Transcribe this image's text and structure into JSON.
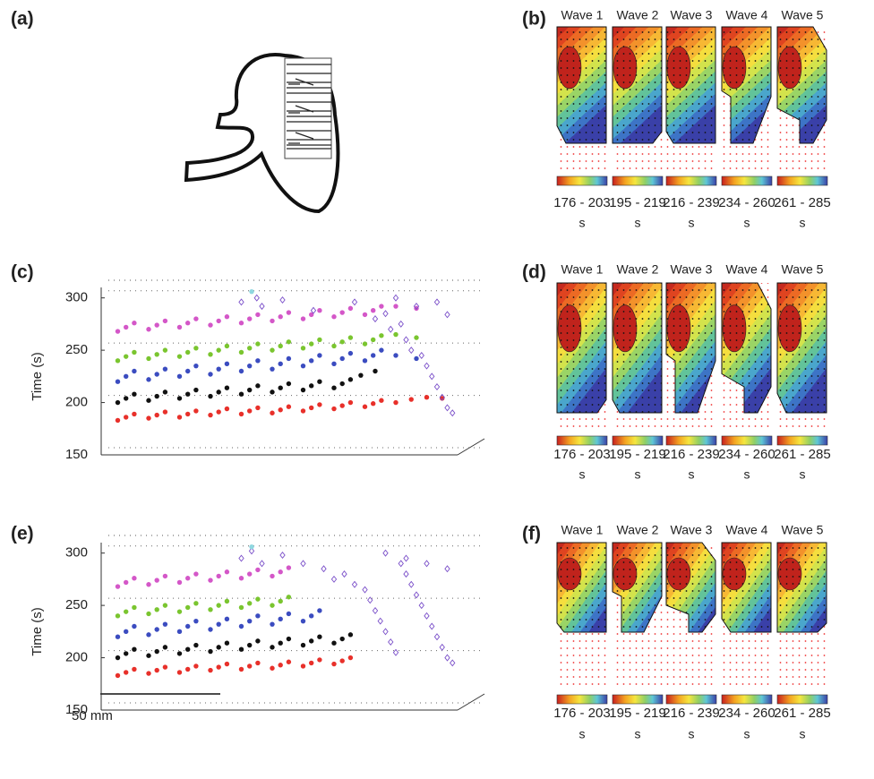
{
  "panel_labels": [
    "(a)",
    "(b)",
    "(c)",
    "(d)",
    "(e)",
    "(f)"
  ],
  "wave_maps": [
    {
      "waves": [
        {
          "title": "Wave 1",
          "range": "176 - 203",
          "unit": "s"
        },
        {
          "title": "Wave 2",
          "range": "195 - 219",
          "unit": "s"
        },
        {
          "title": "Wave 3",
          "range": "216 - 239",
          "unit": "s"
        },
        {
          "title": "Wave 4",
          "range": "234 - 260",
          "unit": "s"
        },
        {
          "title": "Wave 5",
          "range": "261 - 285",
          "unit": "s"
        }
      ]
    },
    {
      "waves": [
        {
          "title": "Wave 1",
          "range": "176 - 203",
          "unit": "s"
        },
        {
          "title": "Wave 2",
          "range": "195 - 219",
          "unit": "s"
        },
        {
          "title": "Wave 3",
          "range": "216 - 239",
          "unit": "s"
        },
        {
          "title": "Wave 4",
          "range": "234 - 260",
          "unit": "s"
        },
        {
          "title": "Wave 5",
          "range": "261 - 285",
          "unit": "s"
        }
      ]
    },
    {
      "waves": [
        {
          "title": "Wave 1",
          "range": "176 - 203",
          "unit": "s"
        },
        {
          "title": "Wave 2",
          "range": "195 - 219",
          "unit": "s"
        },
        {
          "title": "Wave 3",
          "range": "216 - 239",
          "unit": "s"
        },
        {
          "title": "Wave 4",
          "range": "234 - 260",
          "unit": "s"
        },
        {
          "title": "Wave 5",
          "range": "261 - 285",
          "unit": "s"
        }
      ]
    }
  ],
  "scale_bar": "50 mm",
  "chart_data": [
    {
      "type": "scatter",
      "ylabel": "Time (s)",
      "xlim": [
        0,
        34
      ],
      "ylim": [
        150,
        310
      ],
      "yticks": [
        150,
        200,
        250,
        300
      ],
      "grid": true,
      "series": [
        {
          "color": "#e8302a",
          "marker": "dot",
          "x": [
            1,
            1.8,
            2.6,
            4,
            4.8,
            5.6,
            7,
            7.8,
            8.6,
            10,
            10.8,
            11.6,
            13,
            13.8,
            14.6,
            16,
            16.8,
            17.6,
            19,
            19.8,
            20.6,
            22,
            22.8,
            23.6,
            25,
            25.8,
            26.6,
            28,
            29.5,
            31,
            32.5
          ],
          "values": [
            183,
            186,
            189,
            185,
            188,
            191,
            186,
            189,
            192,
            188,
            191,
            194,
            189,
            192,
            195,
            190,
            193,
            196,
            192,
            195,
            198,
            194,
            197,
            200,
            196,
            199,
            202,
            200,
            203,
            205,
            204
          ]
        },
        {
          "color": "#111111",
          "marker": "dot",
          "x": [
            1,
            1.8,
            2.6,
            4,
            4.8,
            5.6,
            7,
            7.8,
            8.6,
            10,
            10.8,
            11.6,
            13,
            13.8,
            14.6,
            16,
            16.8,
            17.6,
            19,
            19.8,
            20.6,
            22,
            22.8,
            23.6,
            24.6,
            26
          ],
          "values": [
            200,
            204,
            208,
            202,
            206,
            210,
            204,
            208,
            212,
            206,
            210,
            214,
            208,
            212,
            216,
            210,
            214,
            218,
            212,
            216,
            220,
            214,
            218,
            222,
            226,
            230
          ]
        },
        {
          "color": "#3b4cc0",
          "marker": "dot",
          "x": [
            1,
            1.8,
            2.6,
            4,
            4.8,
            5.6,
            7,
            7.8,
            8.6,
            10,
            10.8,
            11.6,
            13,
            13.8,
            14.6,
            16,
            16.8,
            17.6,
            19,
            19.8,
            20.6,
            22,
            22.8,
            23.6,
            25,
            25.8,
            26.6,
            28,
            30
          ],
          "values": [
            220,
            225,
            230,
            222,
            227,
            232,
            225,
            230,
            235,
            227,
            232,
            237,
            230,
            235,
            240,
            232,
            237,
            242,
            235,
            240,
            245,
            237,
            242,
            247,
            240,
            245,
            250,
            245,
            242
          ]
        },
        {
          "color": "#7ac52f",
          "marker": "dot",
          "x": [
            1,
            1.8,
            2.6,
            4,
            4.8,
            5.6,
            7,
            7.8,
            8.6,
            10,
            10.8,
            11.6,
            13,
            13.8,
            14.6,
            16,
            16.8,
            17.6,
            19,
            19.8,
            20.6,
            22,
            22.8,
            23.6,
            25,
            25.8,
            26.6,
            28,
            30
          ],
          "values": [
            240,
            244,
            248,
            242,
            246,
            250,
            244,
            248,
            252,
            246,
            250,
            254,
            248,
            252,
            256,
            250,
            254,
            258,
            252,
            256,
            260,
            254,
            258,
            262,
            256,
            260,
            264,
            265,
            262
          ]
        },
        {
          "color": "#d457c8",
          "marker": "dot",
          "x": [
            1,
            1.8,
            2.6,
            4,
            4.8,
            5.6,
            7,
            7.8,
            8.6,
            10,
            10.8,
            11.6,
            13,
            13.8,
            14.6,
            16,
            16.8,
            17.6,
            19,
            19.8,
            20.6,
            22,
            22.8,
            23.6,
            25,
            25.8,
            26.6,
            28,
            30
          ],
          "values": [
            268,
            272,
            276,
            270,
            274,
            278,
            272,
            276,
            280,
            274,
            278,
            282,
            276,
            280,
            284,
            278,
            282,
            286,
            280,
            284,
            288,
            282,
            286,
            290,
            284,
            288,
            292,
            292,
            290
          ]
        },
        {
          "color": "#7a4fc9",
          "marker": "diamond",
          "x": [
            13,
            14.5,
            15,
            17,
            20,
            24,
            26,
            27,
            27.5,
            28.5,
            29,
            29.5,
            30.5,
            31,
            31.5,
            32,
            32.5,
            33,
            33.5,
            28,
            30,
            32,
            33
          ],
          "values": [
            296,
            300,
            292,
            298,
            288,
            296,
            280,
            285,
            270,
            275,
            260,
            250,
            245,
            235,
            225,
            215,
            205,
            195,
            190,
            300,
            292,
            296,
            284
          ]
        },
        {
          "color": "#8fd8e0",
          "marker": "dot",
          "x": [
            14
          ],
          "values": [
            306
          ]
        }
      ]
    },
    {
      "type": "scatter",
      "ylabel": "Time (s)",
      "xlim": [
        0,
        34
      ],
      "ylim": [
        150,
        310
      ],
      "yticks": [
        150,
        200,
        250,
        300
      ],
      "grid": true,
      "series": [
        {
          "color": "#e8302a",
          "marker": "dot",
          "x": [
            1,
            1.8,
            2.6,
            4,
            4.8,
            5.6,
            7,
            7.8,
            8.6,
            10,
            10.8,
            11.6,
            13,
            13.8,
            14.6,
            16,
            16.8,
            17.6,
            19,
            19.8,
            20.6,
            22,
            22.8,
            23.6
          ],
          "values": [
            183,
            186,
            189,
            185,
            188,
            191,
            186,
            189,
            192,
            188,
            191,
            194,
            189,
            192,
            195,
            190,
            193,
            196,
            192,
            195,
            198,
            194,
            197,
            200
          ]
        },
        {
          "color": "#111111",
          "marker": "dot",
          "x": [
            1,
            1.8,
            2.6,
            4,
            4.8,
            5.6,
            7,
            7.8,
            8.6,
            10,
            10.8,
            11.6,
            13,
            13.8,
            14.6,
            16,
            16.8,
            17.6,
            19,
            19.8,
            20.6,
            22,
            22.8,
            23.6
          ],
          "values": [
            200,
            204,
            208,
            202,
            206,
            210,
            204,
            208,
            212,
            206,
            210,
            214,
            208,
            212,
            216,
            210,
            214,
            218,
            212,
            216,
            220,
            214,
            218,
            222
          ]
        },
        {
          "color": "#3b4cc0",
          "marker": "dot",
          "x": [
            1,
            1.8,
            2.6,
            4,
            4.8,
            5.6,
            7,
            7.8,
            8.6,
            10,
            10.8,
            11.6,
            13,
            13.8,
            14.6,
            16,
            16.8,
            17.6,
            19,
            19.8,
            20.6
          ],
          "values": [
            220,
            225,
            230,
            222,
            227,
            232,
            225,
            230,
            235,
            227,
            232,
            237,
            230,
            235,
            240,
            232,
            237,
            242,
            235,
            240,
            245
          ]
        },
        {
          "color": "#7ac52f",
          "marker": "dot",
          "x": [
            1,
            1.8,
            2.6,
            4,
            4.8,
            5.6,
            7,
            7.8,
            8.6,
            10,
            10.8,
            11.6,
            13,
            13.8,
            14.6,
            16,
            16.8,
            17.6
          ],
          "values": [
            240,
            244,
            248,
            242,
            246,
            250,
            244,
            248,
            252,
            246,
            250,
            254,
            248,
            252,
            256,
            250,
            254,
            258
          ]
        },
        {
          "color": "#d457c8",
          "marker": "dot",
          "x": [
            1,
            1.8,
            2.6,
            4,
            4.8,
            5.6,
            7,
            7.8,
            8.6,
            10,
            10.8,
            11.6,
            13,
            13.8,
            14.6,
            16,
            16.8,
            17.6
          ],
          "values": [
            268,
            272,
            276,
            270,
            274,
            278,
            272,
            276,
            280,
            274,
            278,
            282,
            276,
            280,
            284,
            278,
            282,
            286
          ]
        },
        {
          "color": "#7a4fc9",
          "marker": "diamond",
          "x": [
            13,
            14,
            15,
            17,
            19,
            21,
            22,
            23,
            24,
            25,
            25.5,
            26,
            26.5,
            27,
            27.5,
            28,
            28.5,
            29,
            29.5,
            30,
            30.5,
            31,
            31.5,
            32,
            32.5,
            33,
            33.5,
            27,
            29,
            31,
            33
          ],
          "values": [
            295,
            302,
            290,
            298,
            290,
            285,
            275,
            280,
            270,
            265,
            255,
            245,
            235,
            225,
            215,
            205,
            290,
            280,
            270,
            260,
            250,
            240,
            230,
            220,
            210,
            200,
            195,
            300,
            295,
            290,
            285
          ]
        },
        {
          "color": "#8fd8e0",
          "marker": "dot",
          "x": [
            14
          ],
          "values": [
            306
          ]
        }
      ]
    }
  ]
}
